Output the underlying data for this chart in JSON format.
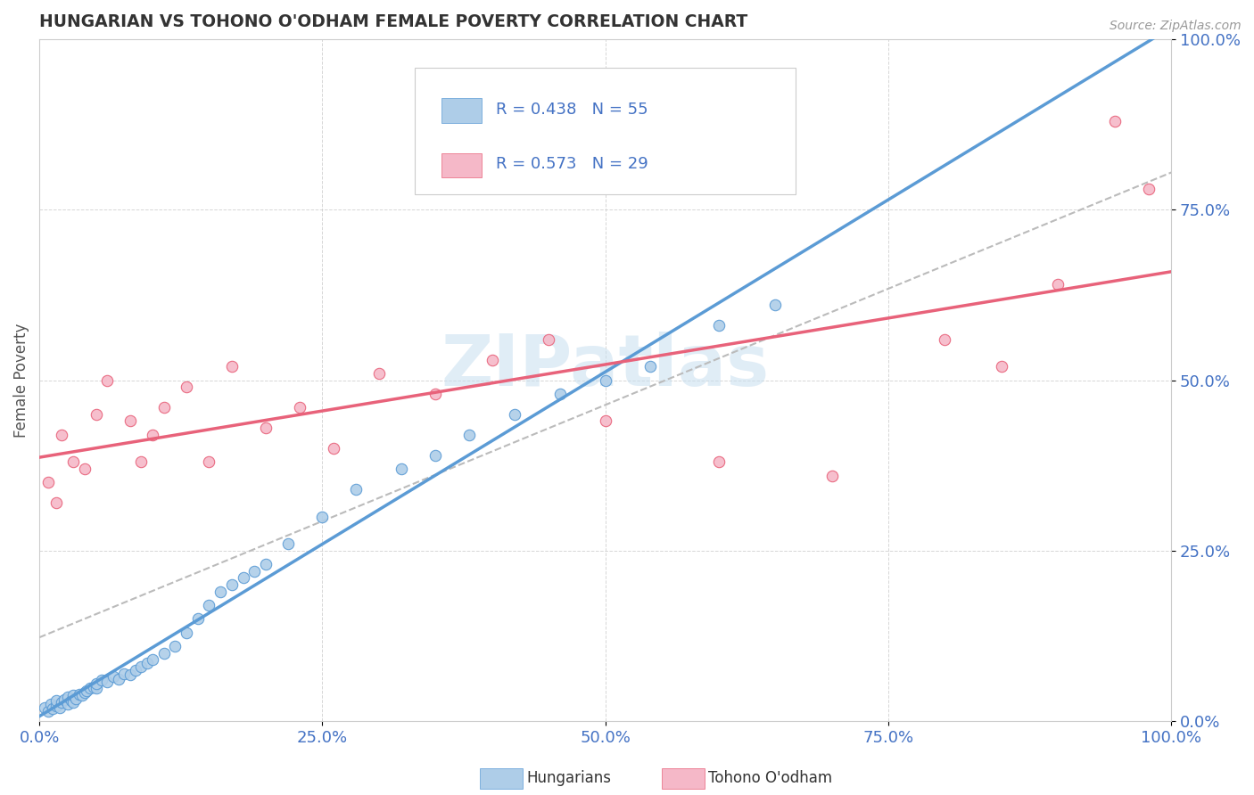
{
  "title": "HUNGARIAN VS TOHONO O'ODHAM FEMALE POVERTY CORRELATION CHART",
  "source": "Source: ZipAtlas.com",
  "ylabel": "Female Poverty",
  "xlim": [
    0,
    1
  ],
  "ylim": [
    0,
    1
  ],
  "xticks": [
    0.0,
    0.25,
    0.5,
    0.75,
    1.0
  ],
  "yticks": [
    0.0,
    0.25,
    0.5,
    0.75,
    1.0
  ],
  "xticklabels": [
    "0.0%",
    "25.0%",
    "50.0%",
    "75.0%",
    "100.0%"
  ],
  "yticklabels": [
    "0.0%",
    "25.0%",
    "50.0%",
    "75.0%",
    "100.0%"
  ],
  "hungarian_R": 0.438,
  "hungarian_N": 55,
  "tohono_R": 0.573,
  "tohono_N": 29,
  "hungarian_color": "#aecde8",
  "tohono_color": "#f5b8c8",
  "hungarian_line_color": "#5b9bd5",
  "tohono_line_color": "#e8627a",
  "dash_line_color": "#bbbbbb",
  "background_color": "#ffffff",
  "grid_color": "#cccccc",
  "title_color": "#333333",
  "ylabel_color": "#555555",
  "tick_color": "#4472c4",
  "watermark": "ZIPatlas",
  "legend_text_color": "#4472c4",
  "hungarian_scatter_x": [
    0.005,
    0.008,
    0.01,
    0.012,
    0.015,
    0.015,
    0.018,
    0.02,
    0.022,
    0.025,
    0.025,
    0.028,
    0.03,
    0.03,
    0.032,
    0.035,
    0.038,
    0.04,
    0.042,
    0.045,
    0.048,
    0.05,
    0.05,
    0.055,
    0.06,
    0.065,
    0.07,
    0.075,
    0.08,
    0.085,
    0.09,
    0.095,
    0.1,
    0.11,
    0.12,
    0.13,
    0.14,
    0.15,
    0.16,
    0.17,
    0.18,
    0.19,
    0.2,
    0.22,
    0.25,
    0.28,
    0.32,
    0.35,
    0.38,
    0.42,
    0.46,
    0.5,
    0.54,
    0.6,
    0.65
  ],
  "hungarian_scatter_y": [
    0.02,
    0.015,
    0.025,
    0.018,
    0.022,
    0.03,
    0.02,
    0.028,
    0.032,
    0.025,
    0.035,
    0.03,
    0.028,
    0.038,
    0.033,
    0.04,
    0.038,
    0.042,
    0.045,
    0.048,
    0.05,
    0.048,
    0.055,
    0.06,
    0.058,
    0.065,
    0.062,
    0.07,
    0.068,
    0.075,
    0.08,
    0.085,
    0.09,
    0.1,
    0.11,
    0.13,
    0.15,
    0.17,
    0.19,
    0.2,
    0.21,
    0.22,
    0.23,
    0.26,
    0.3,
    0.34,
    0.37,
    0.39,
    0.42,
    0.45,
    0.48,
    0.5,
    0.52,
    0.58,
    0.61
  ],
  "tohono_scatter_x": [
    0.008,
    0.015,
    0.02,
    0.03,
    0.04,
    0.05,
    0.06,
    0.08,
    0.09,
    0.1,
    0.11,
    0.13,
    0.15,
    0.17,
    0.2,
    0.23,
    0.26,
    0.3,
    0.35,
    0.4,
    0.45,
    0.5,
    0.6,
    0.7,
    0.8,
    0.85,
    0.9,
    0.95,
    0.98
  ],
  "tohono_scatter_y": [
    0.35,
    0.32,
    0.42,
    0.38,
    0.37,
    0.45,
    0.5,
    0.44,
    0.38,
    0.42,
    0.46,
    0.49,
    0.38,
    0.52,
    0.43,
    0.46,
    0.4,
    0.51,
    0.48,
    0.53,
    0.56,
    0.44,
    0.38,
    0.36,
    0.56,
    0.52,
    0.64,
    0.88,
    0.78
  ],
  "figsize": [
    14.06,
    8.92
  ],
  "dpi": 100
}
